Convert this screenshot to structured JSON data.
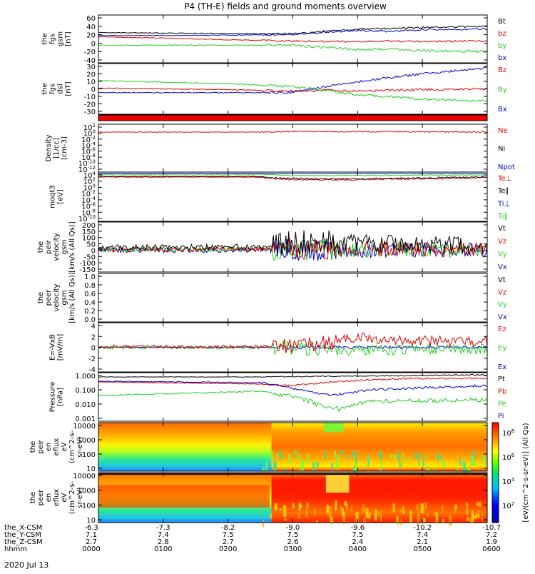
{
  "title": "P4 (TH-E) fields and ground moments overview",
  "colors": {
    "black": "#000000",
    "red": "#e00000",
    "green": "#22cc22",
    "blue": "#0000cc",
    "orange": "#ff7700"
  },
  "panels": [
    {
      "id": "fgs-gsm",
      "ylabel": [
        "the",
        "fgs",
        "gsm",
        "[nT]"
      ],
      "yticks": [
        "60",
        "40",
        "20",
        "0",
        "-20",
        "-40"
      ],
      "legend": [
        {
          "label": "Bt",
          "color": "#000000"
        },
        {
          "label": "bz",
          "color": "#e00000"
        },
        {
          "label": "by",
          "color": "#22cc22"
        },
        {
          "label": "bx",
          "color": "#0000cc"
        }
      ]
    },
    {
      "id": "fgs-dsl",
      "ylabel": [
        "the",
        "fgs",
        "dsl",
        "[nT]"
      ],
      "yticks": [
        "30",
        "20",
        "10",
        "0",
        "-10",
        "-20",
        "-30"
      ],
      "legend": [
        {
          "label": "Bz",
          "color": "#e00000"
        },
        {
          "label": "By",
          "color": "#22cc22"
        },
        {
          "label": "Bx",
          "color": "#0000cc"
        }
      ]
    },
    {
      "id": "density",
      "ylabel": [
        "Density",
        "[1/cc]",
        "[cm-3]"
      ],
      "yticks": [
        "10^2",
        "10^0",
        "10^-2",
        "10^-4",
        "10^-6",
        "10^-8",
        "10^-10",
        "10^-12"
      ],
      "legend": [
        {
          "label": "Ne",
          "color": "#e00000"
        },
        {
          "label": "Ni",
          "color": "#000000"
        },
        {
          "label": "Npot",
          "color": "#0000cc"
        }
      ]
    },
    {
      "id": "temperature",
      "ylabel": [
        "moqt3",
        "[eV]"
      ],
      "yticks": [
        "10^4",
        "10^2",
        "10^0",
        "10^-2",
        "10^-4",
        "10^-6",
        "10^-8",
        "10^-10"
      ],
      "legend": [
        {
          "label": "Te⊥",
          "color": "#e00000"
        },
        {
          "label": "Te∥",
          "color": "#000000"
        },
        {
          "label": "Ti⊥",
          "color": "#0000cc"
        },
        {
          "label": "Ti∥",
          "color": "#22cc22"
        }
      ]
    },
    {
      "id": "peir-velocity",
      "ylabel": [
        "the",
        "peir",
        "velocity",
        "gsm",
        "[km/s (All Qs)]"
      ],
      "yticks": [
        "200",
        "150",
        "100",
        "50",
        "0",
        "-50",
        "-100",
        "-150"
      ],
      "legend": [
        {
          "label": "Vt",
          "color": "#000000"
        },
        {
          "label": "Vz",
          "color": "#e00000"
        },
        {
          "label": "Vy",
          "color": "#22cc22"
        },
        {
          "label": "Vx",
          "color": "#0000cc"
        }
      ]
    },
    {
      "id": "peer-velocity",
      "ylabel": [
        "the",
        "peer",
        "velocity",
        "gsm",
        "[km/s (All Qs)]"
      ],
      "yticks": [
        "1.0",
        "0.8",
        "0.6",
        "0.4",
        "0.2",
        "0.0"
      ],
      "legend": [
        {
          "label": "Vt",
          "color": "#000000"
        },
        {
          "label": "Vz",
          "color": "#e00000"
        },
        {
          "label": "Vy",
          "color": "#22cc22"
        },
        {
          "label": "Vx",
          "color": "#0000cc"
        }
      ]
    },
    {
      "id": "efield",
      "ylabel": [
        "E=-VxB",
        "[mV/m]"
      ],
      "yticks": [
        "4",
        "2",
        "0",
        "-2",
        "-4"
      ],
      "legend": [
        {
          "label": "Ez",
          "color": "#e00000"
        },
        {
          "label": "Ey",
          "color": "#22cc22"
        },
        {
          "label": "Ex",
          "color": "#0000cc"
        }
      ]
    },
    {
      "id": "pressure",
      "ylabel": [
        "Pressure",
        "[nPa]"
      ],
      "yticks": [
        "1.000",
        "0.100",
        "0.010",
        "0.001"
      ],
      "legend": [
        {
          "label": "Pt",
          "color": "#000000"
        },
        {
          "label": "Pb",
          "color": "#e00000"
        },
        {
          "label": "Pe",
          "color": "#22cc22"
        },
        {
          "label": "Pi",
          "color": "#0000cc"
        }
      ]
    },
    {
      "id": "peir-spec",
      "ylabel": [
        "the",
        "peir",
        "en",
        "eflux",
        "eV",
        "(cm^2-s-",
        "sr-eV)"
      ],
      "yticks": [
        "10000",
        "1000",
        "100",
        "10"
      ],
      "legend": []
    },
    {
      "id": "peer-spec",
      "ylabel": [
        "the",
        "peer",
        "en",
        "eflux",
        "eV",
        "(cm^2-s-",
        "sr-eV)"
      ],
      "yticks": [
        "10000",
        "1000",
        "100",
        "10"
      ],
      "legend": []
    }
  ],
  "colorbar": {
    "ticks": [
      "10^8",
      "10^6",
      "10^4",
      "10^2"
    ],
    "label": "[eV/(cm^2-s-sr-eV)] (All Qs)"
  },
  "xaxis": {
    "rows": [
      {
        "label": "the_X-CSM",
        "values": [
          "-6.3",
          "-7.3",
          "-8.2",
          "-9.0",
          "-9.6",
          "-10.2",
          "-10.7"
        ]
      },
      {
        "label": "the_Y-CSM",
        "values": [
          "7.1",
          "7.4",
          "7.5",
          "7.5",
          "7.5",
          "7.4",
          "7.2"
        ]
      },
      {
        "label": "the_Z-CSM",
        "values": [
          "2.7",
          "2.8",
          "2.7",
          "2.6",
          "2.4",
          "2.1",
          "1.9"
        ]
      },
      {
        "label": "hhmm",
        "values": [
          "0000",
          "0100",
          "0200",
          "0300",
          "0400",
          "0500",
          "0600"
        ]
      }
    ],
    "date": "2020 Jul 13"
  },
  "chart_data": {
    "type": "line",
    "title": "P4 (TH-E) fields and ground moments overview",
    "x": [
      "0000",
      "0100",
      "0200",
      "0300",
      "0330",
      "0400",
      "0430",
      "0500",
      "0600"
    ],
    "xlabel": "hhmm",
    "series_panels": [
      {
        "panel": "fgs-gsm",
        "ylim": [
          -40,
          60
        ],
        "series": [
          {
            "name": "Bt",
            "values": [
              25,
              24,
              23,
              22,
              28,
              33,
              35,
              37,
              40
            ]
          },
          {
            "name": "bz",
            "values": [
              15,
              12,
              8,
              5,
              4,
              4,
              5,
              4,
              5
            ]
          },
          {
            "name": "by",
            "values": [
              -5,
              -5,
              -5,
              -5,
              -10,
              -15,
              -14,
              -18,
              -20
            ]
          },
          {
            "name": "bx",
            "values": [
              18,
              18,
              19,
              20,
              26,
              30,
              28,
              32,
              34
            ]
          }
        ]
      },
      {
        "panel": "fgs-dsl",
        "ylim": [
          -30,
          30
        ],
        "series": [
          {
            "name": "Bz",
            "values": [
              1,
              0,
              -1,
              -3,
              -2,
              -3,
              -2,
              -1,
              0
            ]
          },
          {
            "name": "By",
            "values": [
              11,
              9,
              7,
              3,
              -2,
              -8,
              -10,
              -14,
              -16
            ]
          },
          {
            "name": "Bx",
            "values": [
              -5,
              -5,
              -5,
              -5,
              3,
              10,
              15,
              20,
              28
            ]
          }
        ]
      },
      {
        "panel": "efield",
        "ylim": [
          -4,
          4
        ],
        "series": [
          {
            "name": "Ez",
            "values": [
              0.1,
              0.1,
              0.1,
              0.2,
              0.8,
              1.8,
              1.5,
              1.2,
              1.0
            ]
          },
          {
            "name": "Ey",
            "values": [
              0,
              0,
              0,
              0,
              -0.4,
              -0.6,
              -0.5,
              -0.4,
              -0.3
            ]
          },
          {
            "name": "Ex",
            "values": [
              0,
              0,
              0,
              0,
              0,
              0,
              0,
              0,
              0
            ]
          }
        ]
      }
    ]
  }
}
